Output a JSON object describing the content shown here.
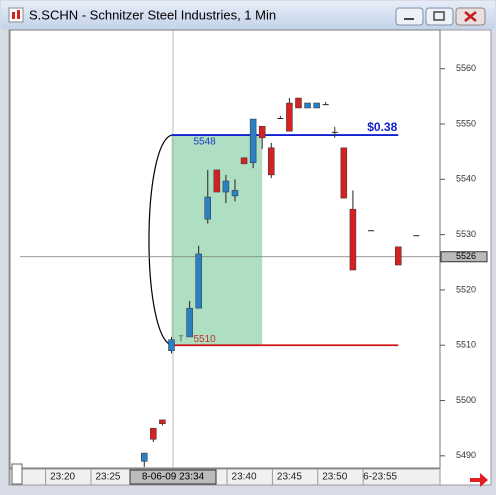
{
  "window": {
    "title": "S.SCHN - Schnitzer Steel Industries, 1 Min"
  },
  "chart_data": {
    "type": "candlestick",
    "up_color": "#2b7fc3",
    "down_color": "#d42222",
    "x": [
      29,
      30,
      31,
      32,
      34,
      35,
      36,
      37,
      38,
      39,
      40,
      41,
      42,
      43,
      44,
      45,
      46,
      47,
      48,
      49,
      50,
      51,
      52,
      54,
      57,
      59
    ],
    "open": [
      5489,
      5495,
      5496.5,
      5509,
      5511.5,
      5516.7,
      5532.8,
      5541.7,
      5537.7,
      5537,
      5543.9,
      5543,
      5549.6,
      5545.7,
      5551,
      5553.8,
      5554.7,
      5552.9,
      5552.9,
      5553.5,
      5548.5,
      5545.7,
      5534.6,
      5530.7,
      5527.8,
      5529.8
    ],
    "high": [
      5490.5,
      5495,
      5496.5,
      5511.5,
      5518,
      5528,
      5541.7,
      5541.7,
      5540.8,
      5540,
      5543.9,
      5550.9,
      5549.6,
      5546.6,
      5551.5,
      5554.7,
      5554.7,
      5553.8,
      5553.8,
      5554,
      5549.5,
      5545.7,
      5538,
      5530.7,
      5527.8,
      5529.8
    ],
    "low": [
      5488,
      5492.5,
      5495.5,
      5508.5,
      5511.5,
      5516.7,
      5532,
      5537.7,
      5535.7,
      5536,
      5542.8,
      5542,
      5545.5,
      5540.2,
      5551,
      5548.7,
      5552.9,
      5552.9,
      5552.9,
      5553.5,
      5547.5,
      5536.6,
      5523.6,
      5530.7,
      5524.5,
      5529.8
    ],
    "close": [
      5490.5,
      5493,
      5495.8,
      5511,
      5516.7,
      5526.5,
      5536.8,
      5537.7,
      5539.7,
      5538,
      5542.8,
      5550.9,
      5547.5,
      5540.8,
      5551,
      5548.7,
      5552.9,
      5553.8,
      5553.8,
      5553.5,
      5548.5,
      5536.6,
      5523.6,
      5530.7,
      5524.5,
      5529.8
    ],
    "xlim": [
      14.2,
      61.6
    ],
    "ylim": [
      5487.8,
      5567
    ],
    "xticks": [
      {
        "value": 20,
        "label": "23:20"
      },
      {
        "value": 25,
        "label": "23:25"
      },
      {
        "value": 40,
        "label": "23:40"
      },
      {
        "value": 45,
        "label": "23:45"
      },
      {
        "value": 50,
        "label": "23:50"
      },
      {
        "value": 55,
        "label": "6-23:55"
      }
    ],
    "yticks": [
      5490,
      5500,
      5510,
      5520,
      5530,
      5540,
      5550,
      5560
    ],
    "crosshair": {
      "x_label": "8-06-09 23:34",
      "y": 5526
    },
    "range": {
      "start": 32,
      "zone_end": 42,
      "line_end": 57,
      "top": 5548,
      "bottom": 5510,
      "bottom_prefix": "T",
      "change": {
        "value": 0.38,
        "label": "$0.38"
      }
    }
  }
}
